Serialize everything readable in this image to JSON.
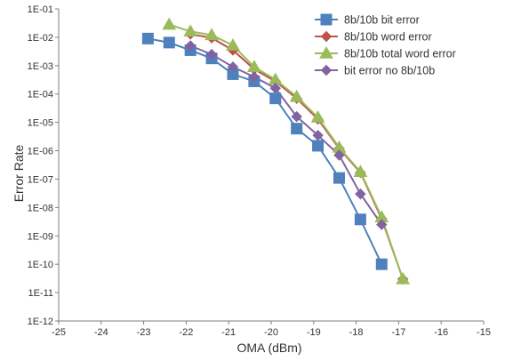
{
  "chart_data": {
    "type": "line",
    "title": "",
    "xlabel": "OMA (dBm)",
    "ylabel": "Error Rate",
    "xlim": [
      -25,
      -15
    ],
    "ylim": [
      1e-12,
      0.1
    ],
    "yscale": "log",
    "grid": false,
    "legend_position": "top-right",
    "x_ticks": [
      "-25",
      "-24",
      "-23",
      "-22",
      "-21",
      "-20",
      "-19",
      "-18",
      "-17",
      "-16",
      "-15"
    ],
    "y_ticks": [
      "1E-12",
      "1E-11",
      "1E-10",
      "1E-09",
      "1E-08",
      "1E-07",
      "1E-06",
      "1E-05",
      "1E-04",
      "1E-03",
      "1E-02",
      "1E-01"
    ],
    "series": [
      {
        "name": "8b/10b bit error",
        "color": "#4F81BD",
        "marker": "square",
        "points": [
          [
            -22.9,
            0.009
          ],
          [
            -22.4,
            0.0065
          ],
          [
            -21.9,
            0.0035
          ],
          [
            -21.4,
            0.0018
          ],
          [
            -20.9,
            0.0005
          ],
          [
            -20.4,
            0.00028
          ],
          [
            -19.9,
            7e-05
          ],
          [
            -19.4,
            6e-06
          ],
          [
            -18.9,
            1.5e-06
          ],
          [
            -18.4,
            1.1e-07
          ],
          [
            -17.9,
            3.8e-09
          ],
          [
            -17.4,
            1e-10
          ]
        ]
      },
      {
        "name": "8b/10b word error",
        "color": "#C0504D",
        "marker": "diamond",
        "points": [
          [
            -21.9,
            0.013
          ],
          [
            -21.4,
            0.0095
          ],
          [
            -20.9,
            0.0035
          ],
          [
            -20.4,
            0.00075
          ],
          [
            -19.9,
            0.00028
          ],
          [
            -19.4,
            7e-05
          ],
          [
            -18.9,
            1.3e-05
          ],
          [
            -18.4,
            1.2e-06
          ],
          [
            -17.9,
            1.7e-07
          ],
          [
            -17.4,
            4e-09
          ],
          [
            -16.9,
            3e-11
          ]
        ]
      },
      {
        "name": "8b/10b total word error",
        "color": "#9BBB59",
        "marker": "triangle",
        "points": [
          [
            -22.4,
            0.028
          ],
          [
            -21.9,
            0.016
          ],
          [
            -21.4,
            0.012
          ],
          [
            -20.9,
            0.0052
          ],
          [
            -20.4,
            0.0009
          ],
          [
            -19.9,
            0.00032
          ],
          [
            -19.4,
            8e-05
          ],
          [
            -18.9,
            1.5e-05
          ],
          [
            -18.4,
            1.3e-06
          ],
          [
            -17.9,
            1.8e-07
          ],
          [
            -17.4,
            4.5e-09
          ],
          [
            -16.9,
            3e-11
          ]
        ]
      },
      {
        "name": "bit error no 8b/10b",
        "color": "#8064A2",
        "marker": "diamond",
        "points": [
          [
            -21.9,
            0.005
          ],
          [
            -21.4,
            0.0025
          ],
          [
            -20.9,
            0.0009
          ],
          [
            -20.4,
            0.0004
          ],
          [
            -19.9,
            0.00016
          ],
          [
            -19.4,
            1.6e-05
          ],
          [
            -18.9,
            3.5e-06
          ],
          [
            -18.4,
            7e-07
          ],
          [
            -17.9,
            3e-08
          ],
          [
            -17.4,
            2.5e-09
          ]
        ]
      }
    ]
  }
}
